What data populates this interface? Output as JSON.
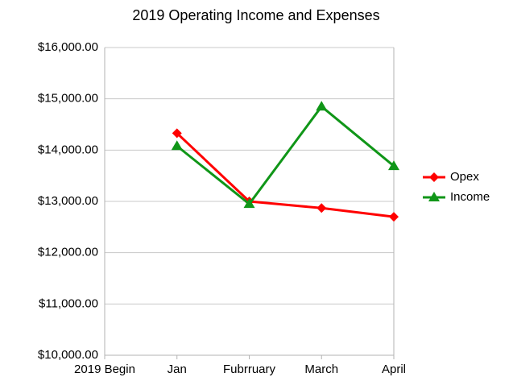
{
  "chart_data": {
    "type": "line",
    "title": "2019 Operating Income and Expenses",
    "categories": [
      "2019 Begin",
      "Jan",
      "Fubrruary",
      "March",
      "April"
    ],
    "series": [
      {
        "name": "Opex",
        "color": "#ff0000",
        "marker": "diamond",
        "values": [
          null,
          14330,
          13000,
          12870,
          12700
        ]
      },
      {
        "name": "Income",
        "color": "#109618",
        "marker": "triangle",
        "values": [
          null,
          14080,
          12950,
          14850,
          13690
        ]
      }
    ],
    "ylim": [
      10000,
      16000
    ],
    "yticks": [
      {
        "value": 10000,
        "label": "$10,000.00"
      },
      {
        "value": 11000,
        "label": "$11,000.00"
      },
      {
        "value": 12000,
        "label": "$12,000.00"
      },
      {
        "value": 13000,
        "label": "$13,000.00"
      },
      {
        "value": 14000,
        "label": "$14,000.00"
      },
      {
        "value": 15000,
        "label": "$15,000.00"
      },
      {
        "value": 16000,
        "label": "$16,000.00"
      }
    ],
    "grid": true,
    "legend": "right"
  }
}
